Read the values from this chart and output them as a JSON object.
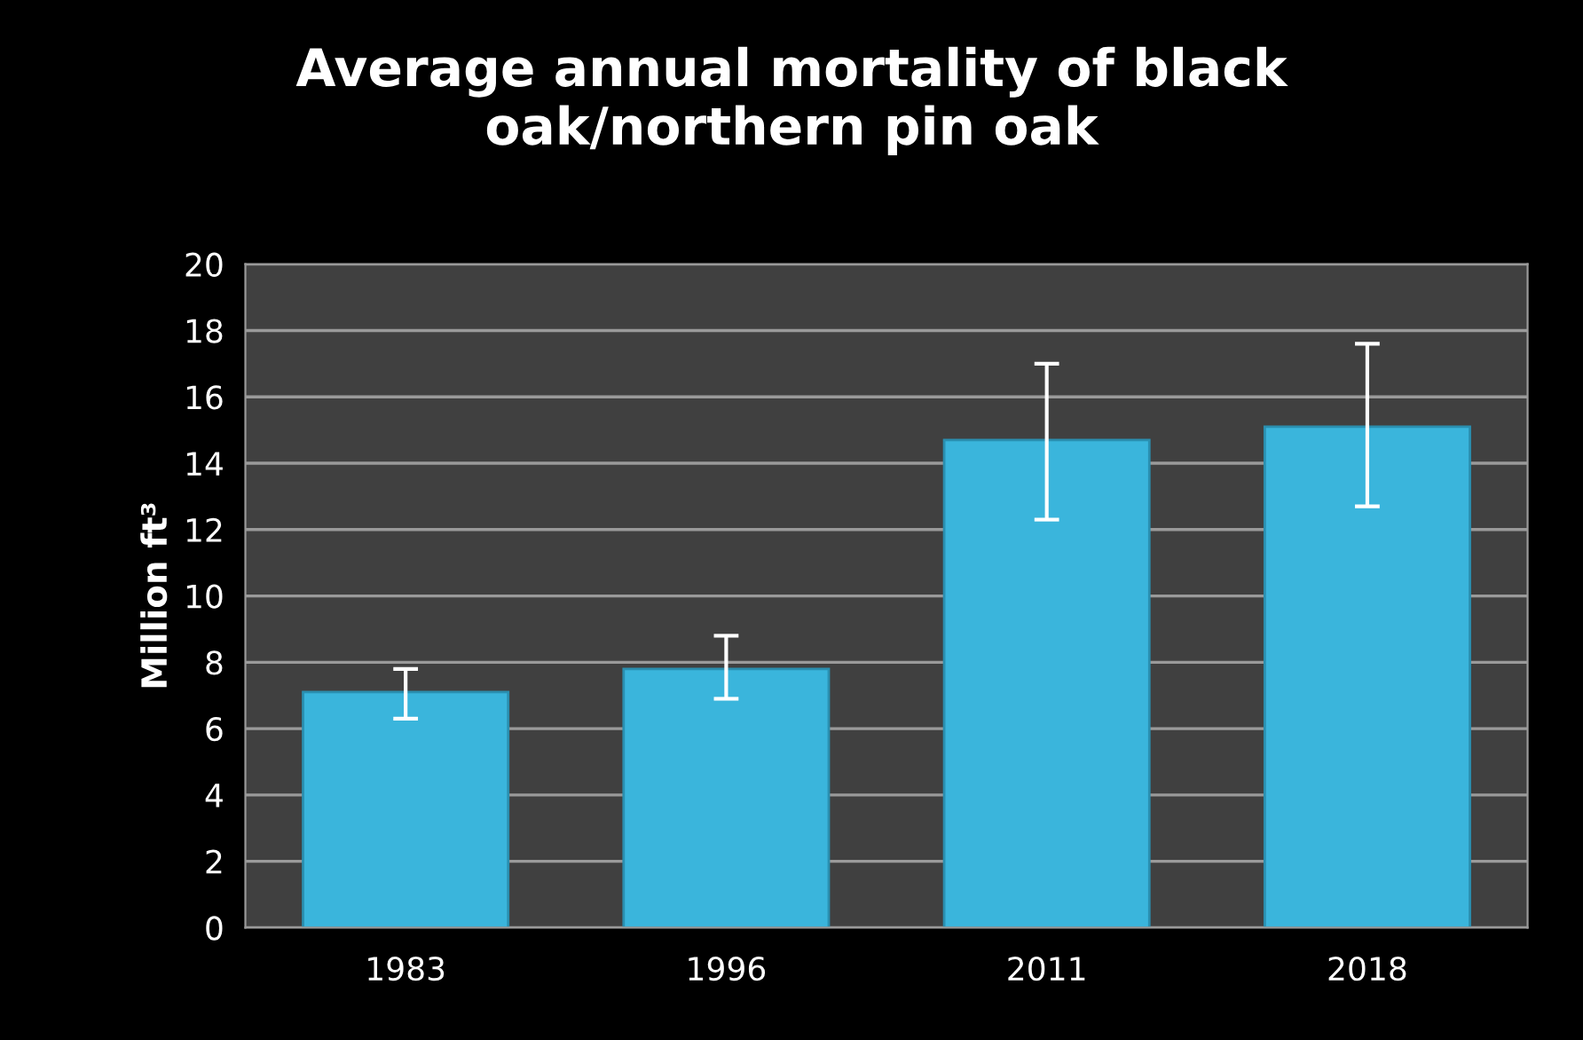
{
  "chart_data": {
    "type": "bar",
    "title": "Average annual mortality of black\noak/northern pin oak",
    "ylabel": "Million ft³",
    "categories": [
      "1983",
      "1996",
      "2011",
      "2018"
    ],
    "values": [
      7.1,
      7.8,
      14.7,
      15.1
    ],
    "errors": [
      [
        6.3,
        7.8
      ],
      [
        6.9,
        8.8
      ],
      [
        12.3,
        17.0
      ],
      [
        12.7,
        17.6
      ]
    ],
    "color": "#3ab5dc",
    "ylim": [
      0,
      20
    ],
    "yticks": [
      0,
      2,
      4,
      6,
      8,
      10,
      12,
      14,
      16,
      18,
      20
    ],
    "grid": "y"
  }
}
